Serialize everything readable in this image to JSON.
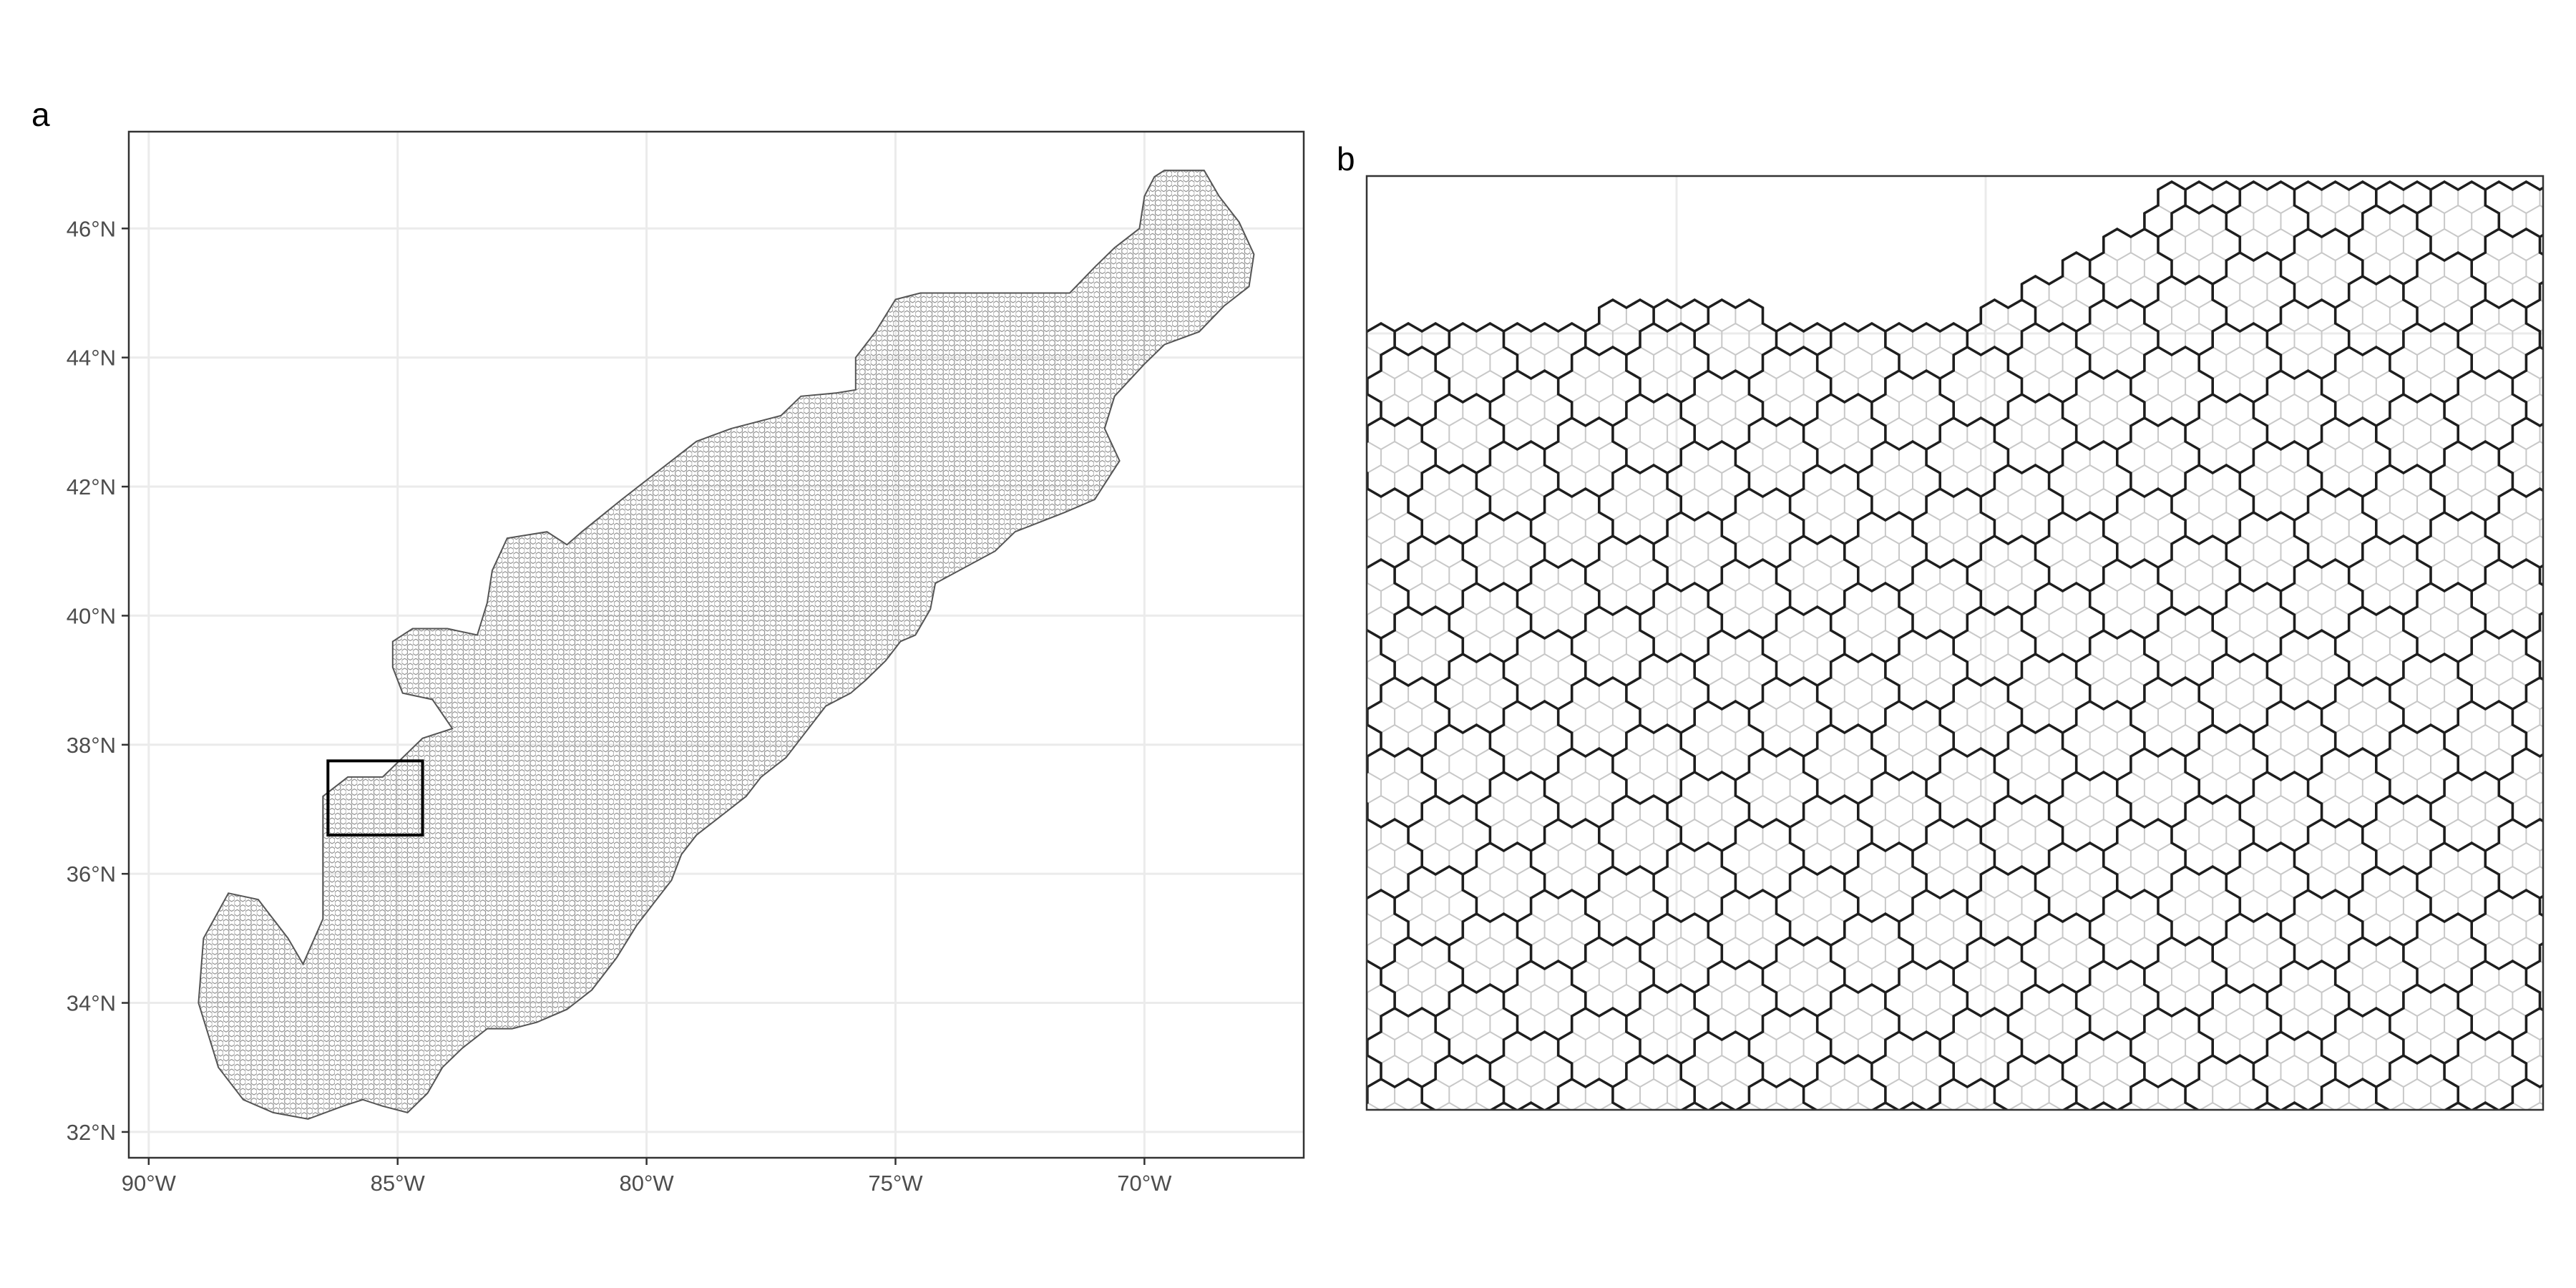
{
  "figure": {
    "panel_a_label": "a",
    "panel_b_label": "b",
    "grid_color": "#ebebeb",
    "frame_color": "#333333",
    "cell_stroke_color": "#8c8c8c",
    "fine_hex_color": "#c8c8c8",
    "coarse_hex_color": "#1e1e1e"
  },
  "map_a": {
    "type": "map",
    "xlim": [
      -90.4,
      -66.8
    ],
    "ylim": [
      31.6,
      47.5
    ],
    "x_ticks": [
      -90,
      -85,
      -80,
      -75,
      -70
    ],
    "y_ticks": [
      32,
      34,
      36,
      38,
      40,
      42,
      44,
      46
    ],
    "x_tick_labels": [
      "90°W",
      "85°W",
      "80°W",
      "75°W",
      "70°W"
    ],
    "y_tick_labels": [
      "32°N",
      "34°N",
      "36°N",
      "38°N",
      "40°N",
      "42°N",
      "44°N",
      "46°N"
    ],
    "inset_box": {
      "lon": [
        -86.4,
        -84.5
      ],
      "lat": [
        36.6,
        37.75
      ]
    },
    "region_outline_lonlat": [
      [
        -88.9,
        35.0
      ],
      [
        -88.4,
        35.7
      ],
      [
        -87.8,
        35.6
      ],
      [
        -87.2,
        35.0
      ],
      [
        -86.9,
        34.6
      ],
      [
        -86.5,
        35.3
      ],
      [
        -86.5,
        36.0
      ],
      [
        -86.5,
        37.2
      ],
      [
        -86.0,
        37.5
      ],
      [
        -85.3,
        37.5
      ],
      [
        -84.9,
        37.8
      ],
      [
        -84.5,
        38.1
      ],
      [
        -83.9,
        38.25
      ],
      [
        -84.3,
        38.7
      ],
      [
        -84.9,
        38.8
      ],
      [
        -85.1,
        39.2
      ],
      [
        -85.1,
        39.6
      ],
      [
        -84.7,
        39.8
      ],
      [
        -84.0,
        39.8
      ],
      [
        -83.4,
        39.7
      ],
      [
        -83.2,
        40.2
      ],
      [
        -83.1,
        40.7
      ],
      [
        -82.8,
        41.2
      ],
      [
        -82.0,
        41.3
      ],
      [
        -81.6,
        41.1
      ],
      [
        -81.3,
        41.3
      ],
      [
        -80.5,
        41.8
      ],
      [
        -79.5,
        42.4
      ],
      [
        -79.0,
        42.7
      ],
      [
        -78.3,
        42.9
      ],
      [
        -77.3,
        43.1
      ],
      [
        -76.9,
        43.4
      ],
      [
        -76.2,
        43.45
      ],
      [
        -75.8,
        43.5
      ],
      [
        -75.8,
        44.0
      ],
      [
        -75.4,
        44.4
      ],
      [
        -75.0,
        44.9
      ],
      [
        -74.5,
        45.0
      ],
      [
        -73.0,
        45.0
      ],
      [
        -71.5,
        45.0
      ],
      [
        -71.0,
        45.4
      ],
      [
        -70.6,
        45.7
      ],
      [
        -70.1,
        46.0
      ],
      [
        -70.0,
        46.5
      ],
      [
        -69.8,
        46.8
      ],
      [
        -69.6,
        46.9
      ],
      [
        -68.8,
        46.9
      ],
      [
        -68.5,
        46.5
      ],
      [
        -68.1,
        46.1
      ],
      [
        -67.8,
        45.6
      ],
      [
        -67.9,
        45.1
      ],
      [
        -68.4,
        44.8
      ],
      [
        -68.9,
        44.4
      ],
      [
        -69.6,
        44.2
      ],
      [
        -70.0,
        43.9
      ],
      [
        -70.6,
        43.4
      ],
      [
        -70.8,
        42.9
      ],
      [
        -70.5,
        42.4
      ],
      [
        -71.0,
        41.8
      ],
      [
        -71.6,
        41.6
      ],
      [
        -72.6,
        41.3
      ],
      [
        -73.0,
        41.0
      ],
      [
        -74.2,
        40.5
      ],
      [
        -74.3,
        40.1
      ],
      [
        -74.6,
        39.7
      ],
      [
        -74.9,
        39.6
      ],
      [
        -75.2,
        39.3
      ],
      [
        -75.6,
        39.0
      ],
      [
        -75.9,
        38.8
      ],
      [
        -76.4,
        38.6
      ],
      [
        -76.8,
        38.2
      ],
      [
        -77.2,
        37.8
      ],
      [
        -77.7,
        37.5
      ],
      [
        -78.0,
        37.2
      ],
      [
        -78.5,
        36.9
      ],
      [
        -79.0,
        36.6
      ],
      [
        -79.3,
        36.3
      ],
      [
        -79.5,
        35.9
      ],
      [
        -79.8,
        35.6
      ],
      [
        -80.2,
        35.2
      ],
      [
        -80.6,
        34.7
      ],
      [
        -81.1,
        34.2
      ],
      [
        -81.6,
        33.9
      ],
      [
        -82.2,
        33.7
      ],
      [
        -82.7,
        33.6
      ],
      [
        -83.2,
        33.6
      ],
      [
        -83.7,
        33.3
      ],
      [
        -84.1,
        33.0
      ],
      [
        -84.4,
        32.6
      ],
      [
        -84.8,
        32.3
      ],
      [
        -85.3,
        32.4
      ],
      [
        -85.7,
        32.5
      ],
      [
        -86.1,
        32.4
      ],
      [
        -86.8,
        32.2
      ],
      [
        -87.5,
        32.3
      ],
      [
        -88.1,
        32.5
      ],
      [
        -88.6,
        33.0
      ],
      [
        -88.8,
        33.5
      ],
      [
        -89.0,
        34.0
      ]
    ]
  }
}
